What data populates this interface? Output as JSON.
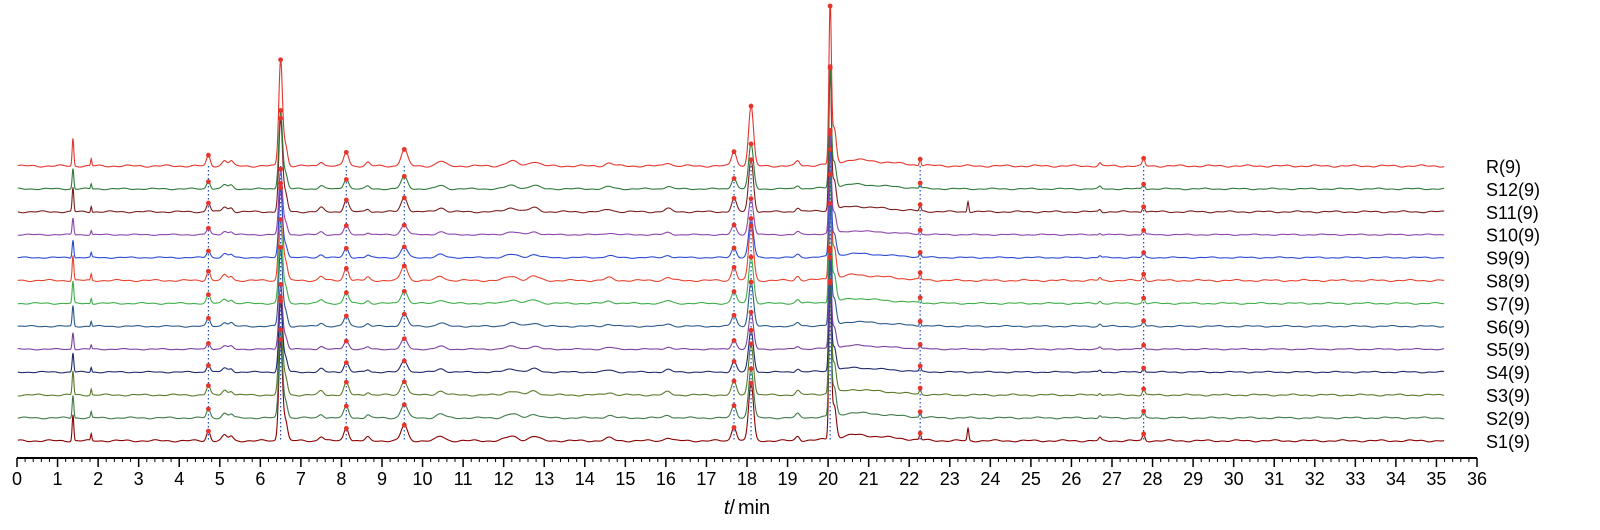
{
  "chart_data": {
    "type": "line",
    "title": "",
    "xlabel": {
      "var": "t",
      "sep": "/",
      "unit": "min"
    },
    "ylabel": "",
    "xlim": [
      0,
      36
    ],
    "x_ticks": [
      0,
      1,
      2,
      3,
      4,
      5,
      6,
      7,
      8,
      9,
      10,
      11,
      12,
      13,
      14,
      15,
      16,
      17,
      18,
      19,
      20,
      21,
      22,
      23,
      24,
      25,
      26,
      27,
      28,
      29,
      30,
      31,
      32,
      33,
      34,
      35,
      36
    ],
    "grid": false,
    "legend": "right",
    "marked_peaks_min": [
      4.72,
      6.5,
      8.12,
      9.55,
      17.68,
      18.1,
      20.05,
      22.27,
      27.78
    ],
    "series": [
      {
        "name": "R(9)",
        "color": "#e4342c",
        "scale": 1.15,
        "extra_peaks": []
      },
      {
        "name": "S12(9)",
        "color": "#2e7a3a",
        "scale": 0.85,
        "extra_peaks": []
      },
      {
        "name": "S11(9)",
        "color": "#7a1e1e",
        "scale": 1.0,
        "extra_peaks": [
          23.45
        ]
      },
      {
        "name": "S10(9)",
        "color": "#8e44ad",
        "scale": 0.7,
        "extra_peaks": []
      },
      {
        "name": "S9(9)",
        "color": "#2b4bd6",
        "scale": 0.75,
        "extra_peaks": []
      },
      {
        "name": "S8(9)",
        "color": "#e8432e",
        "scale": 1.05,
        "extra_peaks": []
      },
      {
        "name": "S7(9)",
        "color": "#3fae49",
        "scale": 0.9,
        "extra_peaks": []
      },
      {
        "name": "S6(9)",
        "color": "#2a5a8a",
        "scale": 0.85,
        "extra_peaks": []
      },
      {
        "name": "S5(9)",
        "color": "#7b3fa0",
        "scale": 0.7,
        "extra_peaks": []
      },
      {
        "name": "S4(9)",
        "color": "#1f2a6b",
        "scale": 0.8,
        "extra_peaks": []
      },
      {
        "name": "S3(9)",
        "color": "#5a7a2a",
        "scale": 1.0,
        "extra_peaks": []
      },
      {
        "name": "S2(9)",
        "color": "#3d7a4a",
        "scale": 0.95,
        "extra_peaks": []
      },
      {
        "name": "S1(9)",
        "color": "#8b0000",
        "scale": 1.1,
        "extra_peaks": [
          23.45
        ]
      }
    ],
    "colors": {
      "marker": "#e4342c",
      "dotted_line": "#1f4fc4",
      "axis": "#000000"
    }
  }
}
